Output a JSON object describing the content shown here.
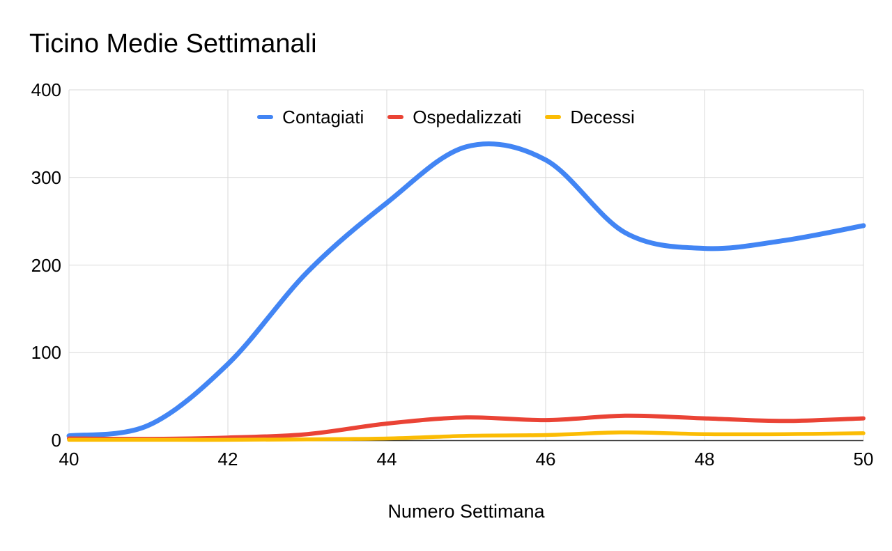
{
  "title": "Ticino Medie Settimanali",
  "chart_data": {
    "type": "line",
    "smooth": true,
    "title": "Ticino Medie Settimanali",
    "xlabel": "Numero Settimana",
    "ylabel": "",
    "x": [
      40,
      41,
      42,
      43,
      44,
      45,
      46,
      47,
      48,
      49,
      50
    ],
    "series": [
      {
        "name": "Contagiati",
        "color": "#4285F4",
        "values": [
          5,
          17,
          87,
          192,
          271,
          335,
          320,
          237,
          219,
          228,
          245
        ]
      },
      {
        "name": "Ospedalizzati",
        "color": "#EA4335",
        "values": [
          2,
          1.5,
          3,
          7,
          19,
          26,
          23,
          28,
          25,
          22,
          25
        ]
      },
      {
        "name": "Decessi",
        "color": "#FBBC04",
        "values": [
          0.5,
          0.5,
          0.5,
          1,
          2,
          5,
          6,
          9,
          7,
          7,
          8
        ]
      }
    ],
    "xlim": [
      40,
      50
    ],
    "ylim": [
      0,
      400
    ],
    "x_ticks": [
      40,
      42,
      44,
      46,
      48,
      50
    ],
    "y_ticks": [
      0,
      100,
      200,
      300,
      400
    ],
    "grid": true,
    "legend_position": "top-center",
    "colors": {
      "gridline": "#d9d9d9",
      "axis_line": "#333333",
      "text": "#000000",
      "background": "#ffffff"
    }
  }
}
